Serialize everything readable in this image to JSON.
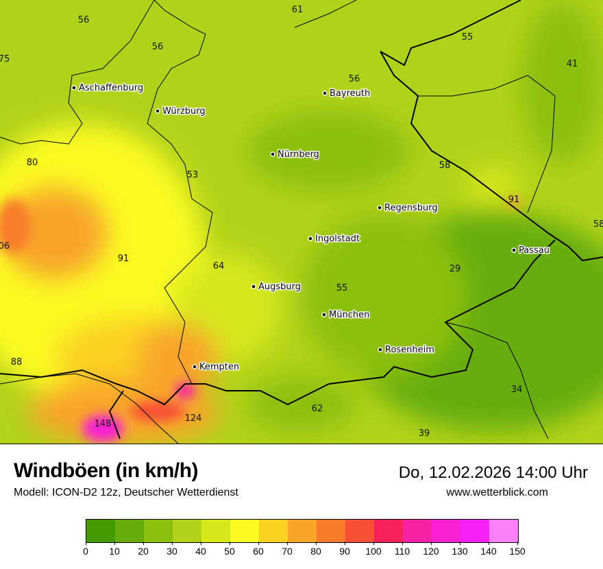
{
  "title": "Windböen (in km/h)",
  "model": "Modell: ICON-D2 12z, Deutscher Wetterdienst",
  "datetime": "Do, 12.02.2026 14:00 Uhr",
  "website": "www.wetterblick.com",
  "cities": [
    {
      "name": "Aschaffenburg"
    },
    {
      "name": "Würzburg"
    },
    {
      "name": "Bayreuth"
    },
    {
      "name": "Nürnberg"
    },
    {
      "name": "Regensburg"
    },
    {
      "name": "Ingolstadt"
    },
    {
      "name": "Passau"
    },
    {
      "name": "Augsburg"
    },
    {
      "name": "München"
    },
    {
      "name": "Rosenheim"
    },
    {
      "name": "Kempten"
    }
  ],
  "values": [
    "56",
    "61",
    "56",
    "55",
    "75",
    "41",
    "56",
    "80",
    "53",
    "58",
    "91",
    "58",
    "06",
    "91",
    "64",
    "29",
    "55",
    "88",
    "34",
    "62",
    "124",
    "148",
    "39"
  ],
  "legend": {
    "ticks": [
      "0",
      "10",
      "20",
      "30",
      "40",
      "50",
      "60",
      "70",
      "80",
      "90",
      "100",
      "110",
      "120",
      "130",
      "140",
      "150"
    ],
    "colors": [
      "#449a00",
      "#66ad0c",
      "#8cc00e",
      "#b2d21a",
      "#d6e81a",
      "#fafa22",
      "#fad222",
      "#f8a52a",
      "#f87b2a",
      "#f85034",
      "#f8225a",
      "#f822a5",
      "#f822d2",
      "#f820f8",
      "#fa80fa"
    ]
  }
}
